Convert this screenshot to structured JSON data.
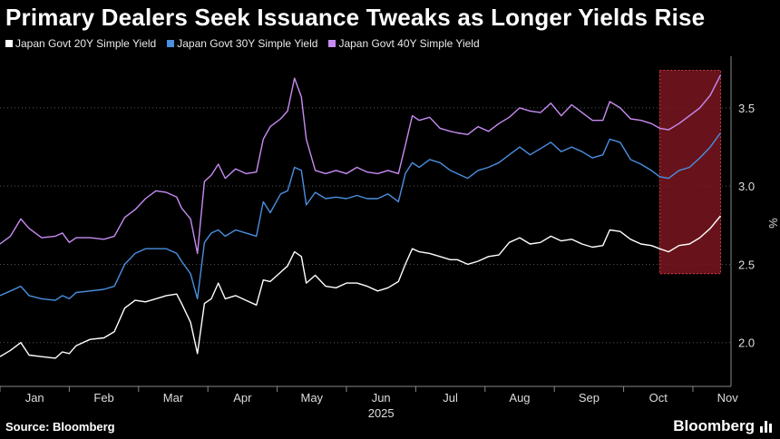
{
  "title": "Primary Dealers Seek Issuance Tweaks as Longer Yields Rise",
  "legend": [
    {
      "label": "Japan Govt 20Y Simple Yield",
      "color": "#ffffff"
    },
    {
      "label": "Japan Govt 30Y Simple Yield",
      "color": "#4a8fe0"
    },
    {
      "label": "Japan Govt 40Y Simple Yield",
      "color": "#c78cf2"
    }
  ],
  "footer": {
    "source": "Source: Bloomberg",
    "brand": "Bloomberg"
  },
  "chart_data": {
    "type": "line",
    "title": "Primary Dealers Seek Issuance Tweaks as Longer Yields Rise",
    "xlabel": "2025",
    "ylabel": "%",
    "x_ticks": [
      "Jan",
      "Feb",
      "Mar",
      "Apr",
      "May",
      "Jun",
      "Jul",
      "Aug",
      "Sep",
      "Oct",
      "Nov"
    ],
    "x_year_label": "2025",
    "y_ticks": [
      "2.0",
      "2.5",
      "3.0",
      "3.5"
    ],
    "ylim": [
      1.72,
      3.83
    ],
    "x_range": [
      0,
      10.55
    ],
    "highlight_range": [
      9.52,
      10.4
    ],
    "series": [
      {
        "name": "Japan Govt 20Y Simple Yield",
        "color": "#ffffff",
        "points": [
          [
            0.0,
            1.91
          ],
          [
            0.15,
            1.95
          ],
          [
            0.3,
            2.0
          ],
          [
            0.42,
            1.92
          ],
          [
            0.6,
            1.91
          ],
          [
            0.8,
            1.9
          ],
          [
            0.9,
            1.94
          ],
          [
            1.0,
            1.93
          ],
          [
            1.1,
            1.98
          ],
          [
            1.3,
            2.02
          ],
          [
            1.5,
            2.03
          ],
          [
            1.65,
            2.07
          ],
          [
            1.8,
            2.22
          ],
          [
            1.95,
            2.27
          ],
          [
            2.1,
            2.26
          ],
          [
            2.25,
            2.28
          ],
          [
            2.4,
            2.3
          ],
          [
            2.55,
            2.31
          ],
          [
            2.62,
            2.25
          ],
          [
            2.75,
            2.13
          ],
          [
            2.85,
            1.93
          ],
          [
            2.95,
            2.25
          ],
          [
            3.05,
            2.28
          ],
          [
            3.15,
            2.38
          ],
          [
            3.25,
            2.28
          ],
          [
            3.4,
            2.3
          ],
          [
            3.55,
            2.27
          ],
          [
            3.7,
            2.24
          ],
          [
            3.8,
            2.4
          ],
          [
            3.9,
            2.39
          ],
          [
            4.05,
            2.45
          ],
          [
            4.15,
            2.49
          ],
          [
            4.25,
            2.58
          ],
          [
            4.35,
            2.55
          ],
          [
            4.42,
            2.38
          ],
          [
            4.55,
            2.43
          ],
          [
            4.7,
            2.36
          ],
          [
            4.85,
            2.35
          ],
          [
            5.0,
            2.38
          ],
          [
            5.15,
            2.38
          ],
          [
            5.3,
            2.36
          ],
          [
            5.45,
            2.33
          ],
          [
            5.6,
            2.35
          ],
          [
            5.75,
            2.39
          ],
          [
            5.85,
            2.5
          ],
          [
            5.95,
            2.6
          ],
          [
            6.05,
            2.58
          ],
          [
            6.2,
            2.57
          ],
          [
            6.35,
            2.55
          ],
          [
            6.5,
            2.53
          ],
          [
            6.6,
            2.53
          ],
          [
            6.75,
            2.5
          ],
          [
            6.9,
            2.52
          ],
          [
            7.05,
            2.55
          ],
          [
            7.2,
            2.56
          ],
          [
            7.35,
            2.64
          ],
          [
            7.5,
            2.67
          ],
          [
            7.65,
            2.63
          ],
          [
            7.8,
            2.64
          ],
          [
            7.95,
            2.68
          ],
          [
            8.1,
            2.65
          ],
          [
            8.25,
            2.66
          ],
          [
            8.4,
            2.63
          ],
          [
            8.55,
            2.61
          ],
          [
            8.7,
            2.62
          ],
          [
            8.8,
            2.72
          ],
          [
            8.95,
            2.71
          ],
          [
            9.1,
            2.66
          ],
          [
            9.25,
            2.63
          ],
          [
            9.4,
            2.62
          ],
          [
            9.52,
            2.6
          ],
          [
            9.65,
            2.58
          ],
          [
            9.8,
            2.62
          ],
          [
            9.95,
            2.63
          ],
          [
            10.1,
            2.67
          ],
          [
            10.25,
            2.73
          ],
          [
            10.4,
            2.81
          ]
        ]
      },
      {
        "name": "Japan Govt 30Y Simple Yield",
        "color": "#4a8fe0",
        "points": [
          [
            0.0,
            2.3
          ],
          [
            0.15,
            2.33
          ],
          [
            0.3,
            2.36
          ],
          [
            0.42,
            2.3
          ],
          [
            0.6,
            2.28
          ],
          [
            0.8,
            2.27
          ],
          [
            0.9,
            2.3
          ],
          [
            1.0,
            2.28
          ],
          [
            1.1,
            2.32
          ],
          [
            1.3,
            2.33
          ],
          [
            1.5,
            2.34
          ],
          [
            1.65,
            2.36
          ],
          [
            1.8,
            2.5
          ],
          [
            1.95,
            2.57
          ],
          [
            2.1,
            2.6
          ],
          [
            2.25,
            2.6
          ],
          [
            2.4,
            2.6
          ],
          [
            2.55,
            2.57
          ],
          [
            2.62,
            2.52
          ],
          [
            2.75,
            2.44
          ],
          [
            2.85,
            2.28
          ],
          [
            2.95,
            2.64
          ],
          [
            3.05,
            2.7
          ],
          [
            3.15,
            2.72
          ],
          [
            3.25,
            2.68
          ],
          [
            3.4,
            2.72
          ],
          [
            3.55,
            2.7
          ],
          [
            3.7,
            2.68
          ],
          [
            3.8,
            2.9
          ],
          [
            3.9,
            2.83
          ],
          [
            4.05,
            2.95
          ],
          [
            4.15,
            2.97
          ],
          [
            4.25,
            3.12
          ],
          [
            4.35,
            3.1
          ],
          [
            4.42,
            2.88
          ],
          [
            4.55,
            2.96
          ],
          [
            4.7,
            2.92
          ],
          [
            4.85,
            2.93
          ],
          [
            5.0,
            2.92
          ],
          [
            5.15,
            2.94
          ],
          [
            5.3,
            2.92
          ],
          [
            5.45,
            2.92
          ],
          [
            5.6,
            2.95
          ],
          [
            5.75,
            2.9
          ],
          [
            5.85,
            3.08
          ],
          [
            5.95,
            3.15
          ],
          [
            6.05,
            3.12
          ],
          [
            6.2,
            3.17
          ],
          [
            6.35,
            3.15
          ],
          [
            6.5,
            3.1
          ],
          [
            6.6,
            3.08
          ],
          [
            6.75,
            3.05
          ],
          [
            6.9,
            3.1
          ],
          [
            7.05,
            3.12
          ],
          [
            7.2,
            3.15
          ],
          [
            7.35,
            3.2
          ],
          [
            7.5,
            3.25
          ],
          [
            7.65,
            3.2
          ],
          [
            7.8,
            3.24
          ],
          [
            7.95,
            3.28
          ],
          [
            8.1,
            3.22
          ],
          [
            8.25,
            3.25
          ],
          [
            8.4,
            3.22
          ],
          [
            8.55,
            3.18
          ],
          [
            8.7,
            3.2
          ],
          [
            8.8,
            3.3
          ],
          [
            8.95,
            3.28
          ],
          [
            9.1,
            3.17
          ],
          [
            9.25,
            3.14
          ],
          [
            9.4,
            3.1
          ],
          [
            9.52,
            3.06
          ],
          [
            9.65,
            3.05
          ],
          [
            9.8,
            3.1
          ],
          [
            9.95,
            3.12
          ],
          [
            10.1,
            3.18
          ],
          [
            10.25,
            3.25
          ],
          [
            10.4,
            3.34
          ]
        ]
      },
      {
        "name": "Japan Govt 40Y Simple Yield",
        "color": "#c78cf2",
        "points": [
          [
            0.0,
            2.63
          ],
          [
            0.15,
            2.68
          ],
          [
            0.3,
            2.79
          ],
          [
            0.42,
            2.73
          ],
          [
            0.6,
            2.67
          ],
          [
            0.8,
            2.68
          ],
          [
            0.9,
            2.7
          ],
          [
            1.0,
            2.64
          ],
          [
            1.1,
            2.67
          ],
          [
            1.3,
            2.67
          ],
          [
            1.5,
            2.66
          ],
          [
            1.65,
            2.68
          ],
          [
            1.8,
            2.8
          ],
          [
            1.95,
            2.85
          ],
          [
            2.1,
            2.92
          ],
          [
            2.25,
            2.97
          ],
          [
            2.4,
            2.96
          ],
          [
            2.55,
            2.93
          ],
          [
            2.62,
            2.86
          ],
          [
            2.75,
            2.79
          ],
          [
            2.85,
            2.57
          ],
          [
            2.95,
            3.03
          ],
          [
            3.05,
            3.07
          ],
          [
            3.15,
            3.14
          ],
          [
            3.25,
            3.05
          ],
          [
            3.4,
            3.11
          ],
          [
            3.55,
            3.08
          ],
          [
            3.7,
            3.09
          ],
          [
            3.8,
            3.3
          ],
          [
            3.9,
            3.38
          ],
          [
            4.05,
            3.43
          ],
          [
            4.15,
            3.48
          ],
          [
            4.25,
            3.69
          ],
          [
            4.35,
            3.57
          ],
          [
            4.42,
            3.3
          ],
          [
            4.55,
            3.1
          ],
          [
            4.7,
            3.08
          ],
          [
            4.85,
            3.1
          ],
          [
            5.0,
            3.08
          ],
          [
            5.15,
            3.12
          ],
          [
            5.3,
            3.09
          ],
          [
            5.45,
            3.08
          ],
          [
            5.6,
            3.1
          ],
          [
            5.75,
            3.08
          ],
          [
            5.85,
            3.26
          ],
          [
            5.95,
            3.45
          ],
          [
            6.05,
            3.42
          ],
          [
            6.2,
            3.44
          ],
          [
            6.35,
            3.37
          ],
          [
            6.5,
            3.35
          ],
          [
            6.6,
            3.34
          ],
          [
            6.75,
            3.33
          ],
          [
            6.9,
            3.38
          ],
          [
            7.05,
            3.35
          ],
          [
            7.2,
            3.4
          ],
          [
            7.35,
            3.44
          ],
          [
            7.5,
            3.5
          ],
          [
            7.65,
            3.48
          ],
          [
            7.8,
            3.47
          ],
          [
            7.95,
            3.53
          ],
          [
            8.1,
            3.45
          ],
          [
            8.25,
            3.52
          ],
          [
            8.4,
            3.47
          ],
          [
            8.55,
            3.42
          ],
          [
            8.7,
            3.42
          ],
          [
            8.8,
            3.54
          ],
          [
            8.95,
            3.5
          ],
          [
            9.1,
            3.43
          ],
          [
            9.25,
            3.42
          ],
          [
            9.4,
            3.4
          ],
          [
            9.52,
            3.37
          ],
          [
            9.65,
            3.36
          ],
          [
            9.8,
            3.4
          ],
          [
            9.95,
            3.45
          ],
          [
            10.1,
            3.5
          ],
          [
            10.25,
            3.58
          ],
          [
            10.4,
            3.71
          ]
        ]
      }
    ]
  }
}
